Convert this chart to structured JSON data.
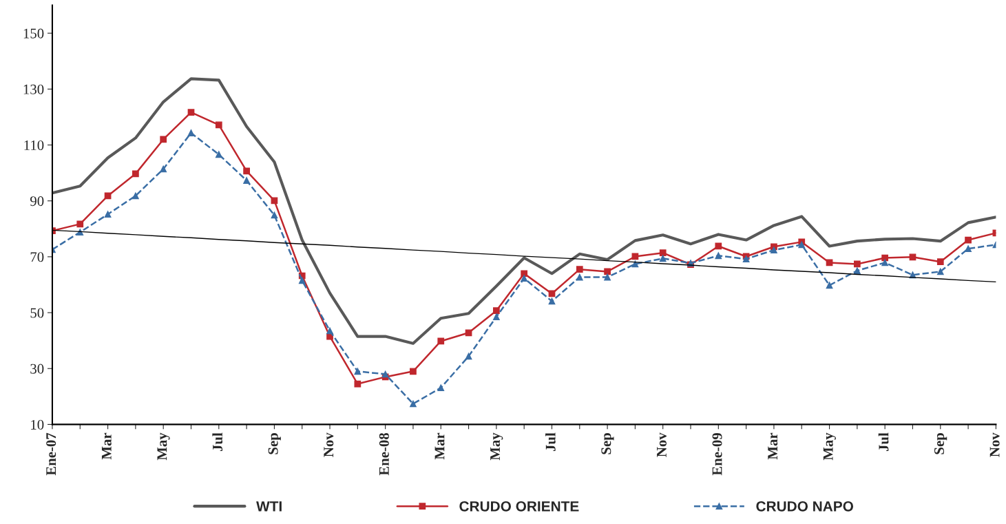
{
  "chart_data": {
    "type": "line",
    "categories": [
      "Ene-07",
      null,
      "Mar",
      null,
      "May",
      null,
      "Jul",
      null,
      "Sep",
      null,
      "Nov",
      null,
      "Ene-08",
      null,
      "Mar",
      null,
      "May",
      null,
      "Jul",
      null,
      "Sep",
      null,
      "Nov",
      null,
      "Ene-09",
      null,
      "Mar",
      null,
      "May",
      null,
      "Jul",
      null,
      "Sep",
      null,
      "Nov"
    ],
    "series": [
      {
        "name": "WTI",
        "color": "#595959",
        "marker": "none",
        "line_style": "solid",
        "values": [
          92.8,
          95.3,
          105.4,
          112.5,
          125.4,
          133.7,
          133.2,
          116.6,
          103.9,
          76,
          57,
          41.5,
          41.5,
          39,
          48,
          49.7,
          59.5,
          69.6,
          64,
          71,
          69,
          75.8,
          77.8,
          74.6,
          78,
          76,
          81.2,
          84.4,
          73.8,
          75.6,
          76.3,
          76.5,
          75.6,
          82.2,
          84.2
        ]
      },
      {
        "name": "CRUDO ORIENTE",
        "color": "#c0272d",
        "marker": "square",
        "line_style": "solid",
        "values": [
          79.3,
          81.7,
          91.8,
          99.7,
          112,
          121.7,
          117.2,
          100.7,
          90.1,
          63.2,
          41.5,
          24.5,
          27,
          29,
          39.8,
          42.8,
          50.7,
          64,
          56.8,
          65.5,
          64.7,
          70.1,
          71.4,
          67.2,
          73.8,
          70.1,
          73.6,
          75.3,
          67.9,
          67.4,
          69.6,
          69.9,
          68.2,
          76,
          78.5
        ]
      },
      {
        "name": "CRUDO NAPO",
        "color": "#3a6ea5",
        "marker": "triangle",
        "line_style": "dashed",
        "values": [
          72.6,
          78.8,
          85.2,
          91.8,
          101.4,
          114.3,
          106.6,
          97.3,
          84.9,
          61.5,
          43.5,
          29,
          28,
          17.4,
          23.1,
          34.4,
          48.5,
          62.3,
          54.1,
          62.7,
          62.7,
          67.4,
          69.4,
          67.7,
          70.4,
          69.2,
          72.4,
          74.3,
          59.8,
          65,
          67.9,
          63.5,
          64.7,
          72.9,
          74.3
        ]
      },
      {
        "type": "line",
        "color": "#000000",
        "marker": "none",
        "line_style": "solid",
        "values": [
          79.5,
          79,
          78.4,
          77.9,
          77.3,
          76.8,
          76.2,
          75.7,
          75.1,
          74.6,
          74.1,
          73.5,
          73,
          72.4,
          71.9,
          71.3,
          70.8,
          70.2,
          69.7,
          69.2,
          68.6,
          68.1,
          67.5,
          67,
          66.4,
          65.9,
          65.3,
          64.8,
          64.3,
          63.7,
          63.2,
          62.6,
          62.1,
          61.5,
          61
        ]
      }
    ],
    "ylim": [
      10,
      160
    ],
    "yticks": [
      10,
      30,
      50,
      70,
      90,
      110,
      130,
      150
    ],
    "grid": false,
    "legend": "bottom"
  }
}
